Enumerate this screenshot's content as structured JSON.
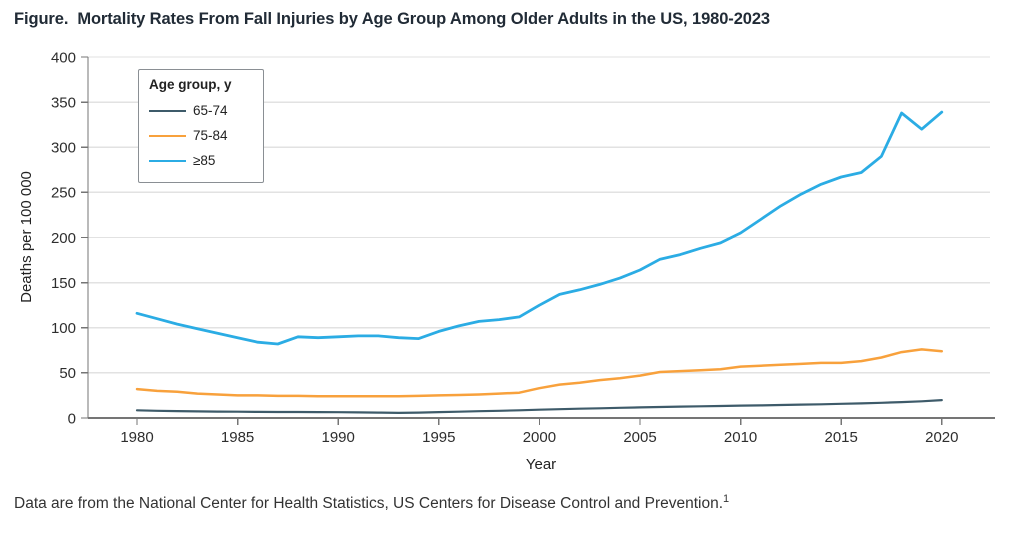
{
  "figure": {
    "label": "Figure.",
    "title": "Mortality Rates From Fall Injuries by Age Group Among Older Adults in the US, 1980-2023",
    "footer": {
      "text": "Data are from the National Center for Health Statistics, US Centers for Disease Control and Prevention.",
      "reference_superscript": "1"
    }
  },
  "chart_data": {
    "type": "line",
    "xlabel": "Year",
    "ylabel": "Deaths per 100 000",
    "ylim": [
      0,
      400
    ],
    "xlim": [
      1977.6,
      2022.7
    ],
    "yticks": [
      0,
      50,
      100,
      150,
      200,
      250,
      300,
      350,
      400
    ],
    "xticks": [
      1980,
      1985,
      1990,
      1995,
      2000,
      2005,
      2010,
      2015,
      2020
    ],
    "grid": "horizontal",
    "legend": {
      "title": "Age group, y",
      "position": "inside-top-left"
    },
    "years": [
      1980,
      1981,
      1982,
      1983,
      1984,
      1985,
      1986,
      1987,
      1988,
      1989,
      1990,
      1991,
      1992,
      1993,
      1994,
      1995,
      1996,
      1997,
      1998,
      1999,
      2000,
      2001,
      2002,
      2003,
      2004,
      2005,
      2006,
      2007,
      2008,
      2009,
      2010,
      2011,
      2012,
      2013,
      2014,
      2015,
      2016,
      2017,
      2018,
      2019,
      2020
    ],
    "series": [
      {
        "name": "65-74",
        "color": "#3e5b6a",
        "stroke_width": 2.2,
        "values": [
          8.5,
          8,
          7.6,
          7.3,
          7.1,
          7,
          6.8,
          6.7,
          6.6,
          6.5,
          6.4,
          6.2,
          6,
          5.6,
          6,
          6.5,
          7,
          7.5,
          8,
          8.5,
          9.2,
          9.8,
          10.3,
          10.8,
          11.3,
          11.8,
          12.2,
          12.6,
          13,
          13.3,
          13.7,
          14,
          14.4,
          14.8,
          15.2,
          15.7,
          16.2,
          16.8,
          17.6,
          18.5,
          19.8
        ]
      },
      {
        "name": "75-84",
        "color": "#f8a13c",
        "stroke_width": 2.5,
        "values": [
          32,
          30,
          29,
          27,
          26,
          25,
          25,
          24.5,
          24.5,
          24,
          24,
          24,
          24,
          24,
          24.5,
          25,
          25.5,
          26,
          27,
          28,
          33,
          37,
          39,
          42,
          44,
          47,
          51,
          52,
          53,
          54,
          57,
          58,
          59,
          60,
          61,
          61,
          63,
          67,
          73,
          76,
          74
        ]
      },
      {
        "name": "≥85",
        "color": "#2bace4",
        "stroke_width": 2.8,
        "values": [
          116,
          110,
          104,
          99,
          94,
          89,
          84,
          82,
          90,
          89,
          90,
          91,
          91,
          89,
          88,
          96,
          102,
          107,
          109,
          112,
          125,
          137,
          142,
          148,
          155,
          164,
          176,
          181,
          188,
          194,
          205,
          220,
          235,
          248,
          259,
          267,
          272,
          290,
          338,
          320,
          339
        ]
      }
    ],
    "style": {
      "grid_color": "#e2e2e2",
      "spine_color": "#757575",
      "tick_label_color": "#2e2e2e",
      "axis_label_color": "#222222"
    }
  }
}
